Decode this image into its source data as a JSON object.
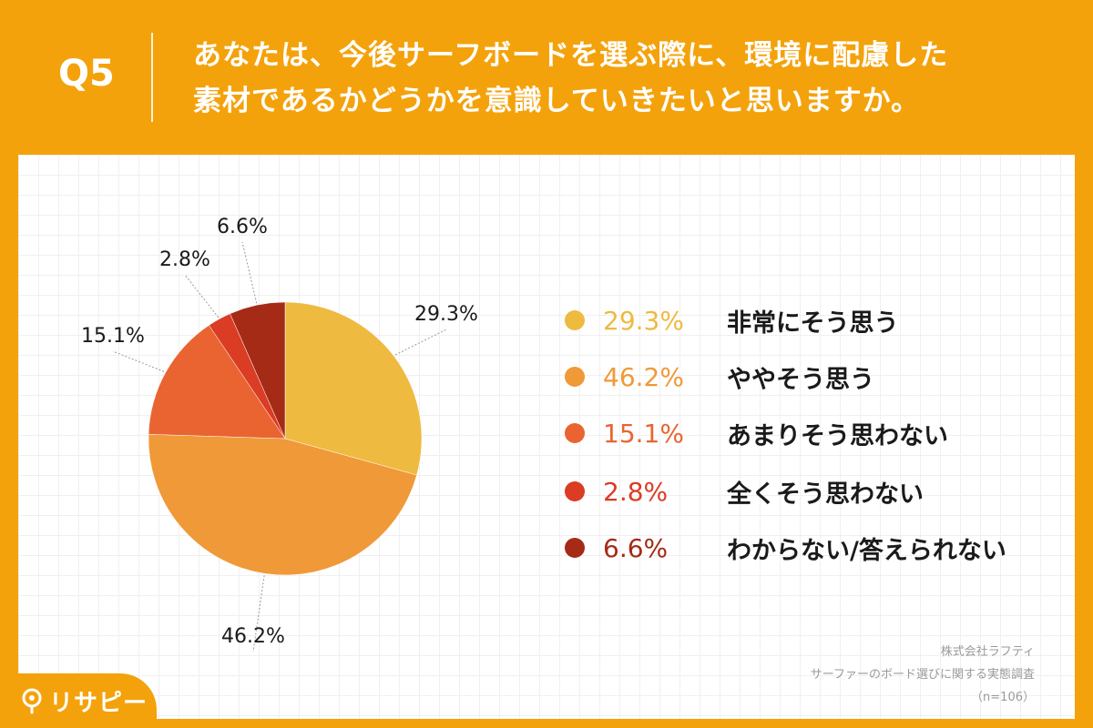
{
  "header": {
    "question_number": "Q5",
    "question_line1": "あなたは、今後サーフボードを選ぶ際に、環境に配慮した",
    "question_line2": "素材であるかどうかを意識していきたいと思いますか。"
  },
  "chart_data": {
    "type": "pie",
    "title": "あなたは、今後サーフボードを選ぶ際に、環境に配慮した素材であるかどうかを意識していきたいと思いますか。",
    "unit": "%",
    "slices": [
      {
        "label": "非常にそう思う",
        "value": 29.3,
        "value_label": "29.3%",
        "color": "#EEBA40"
      },
      {
        "label": "ややそう思う",
        "value": 46.2,
        "value_label": "46.2%",
        "color": "#F09938"
      },
      {
        "label": "あまりそう思わない",
        "value": 15.1,
        "value_label": "15.1%",
        "color": "#EA6431"
      },
      {
        "label": "全くそう思わない",
        "value": 2.8,
        "value_label": "2.8%",
        "color": "#DB3C24"
      },
      {
        "label": "わからない/答えられない",
        "value": 6.6,
        "value_label": "6.6%",
        "color": "#A52B17"
      }
    ]
  },
  "source": {
    "company": "株式会社ラフティ",
    "survey": "サーファーのボード選びに関する実態調査",
    "sample": "（n=106）"
  },
  "brand": {
    "name": "リサピー"
  }
}
